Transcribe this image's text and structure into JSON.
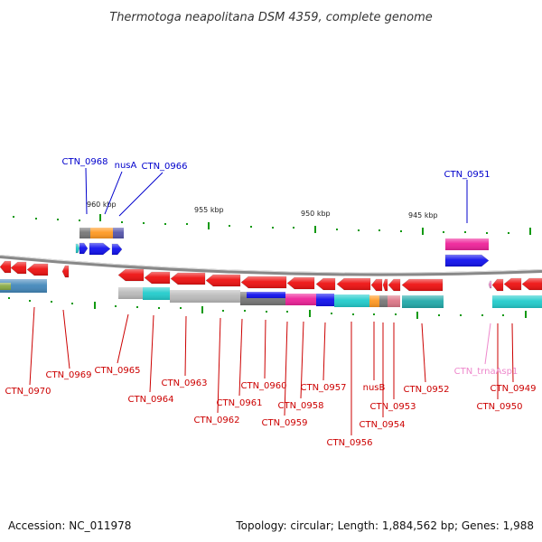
{
  "title": "Thermotoga neapolitana DSM 4359, complete genome",
  "footer": {
    "accession": "Accession: NC_011978",
    "summary": "Topology: circular; Length: 1,884,562 bp; Genes: 1,988"
  },
  "ruler": [
    "960 kbp",
    "955 kbp",
    "950 kbp",
    "945 kbp"
  ],
  "colors": {
    "red": "#ee1111",
    "gray": "#bbbbbb",
    "dark_gray": "#777777",
    "cyan": "#22cccc",
    "teal": "#22aaaa",
    "blue": "#1111ee",
    "magenta": "#ee2299",
    "orange": "#ff9922",
    "navy": "#5555aa",
    "sky": "#4488bb",
    "olive": "#88aa44",
    "label_red": "#cc0000",
    "label_blue": "#0000cc",
    "label_pink": "#ee88cc",
    "backbone": "#888888",
    "tick": "#119911"
  },
  "gene_labels_top": [
    "CTN_0968",
    "nusA",
    "CTN_0966",
    "CTN_0951"
  ],
  "gene_labels_bottom": [
    "CTN_0970",
    "CTN_0969",
    "CTN_0965",
    "CTN_0964",
    "CTN_0963",
    "CTN_0962",
    "CTN_0961",
    "CTN_0960",
    "CTN_0959",
    "CTN_0958",
    "CTN_0957",
    "CTN_0956",
    "nusB",
    "CTN_0954",
    "CTN_0953",
    "CTN_0952",
    "CTN_trnaAsp1",
    "CTN_0950",
    "CTN_0949"
  ]
}
